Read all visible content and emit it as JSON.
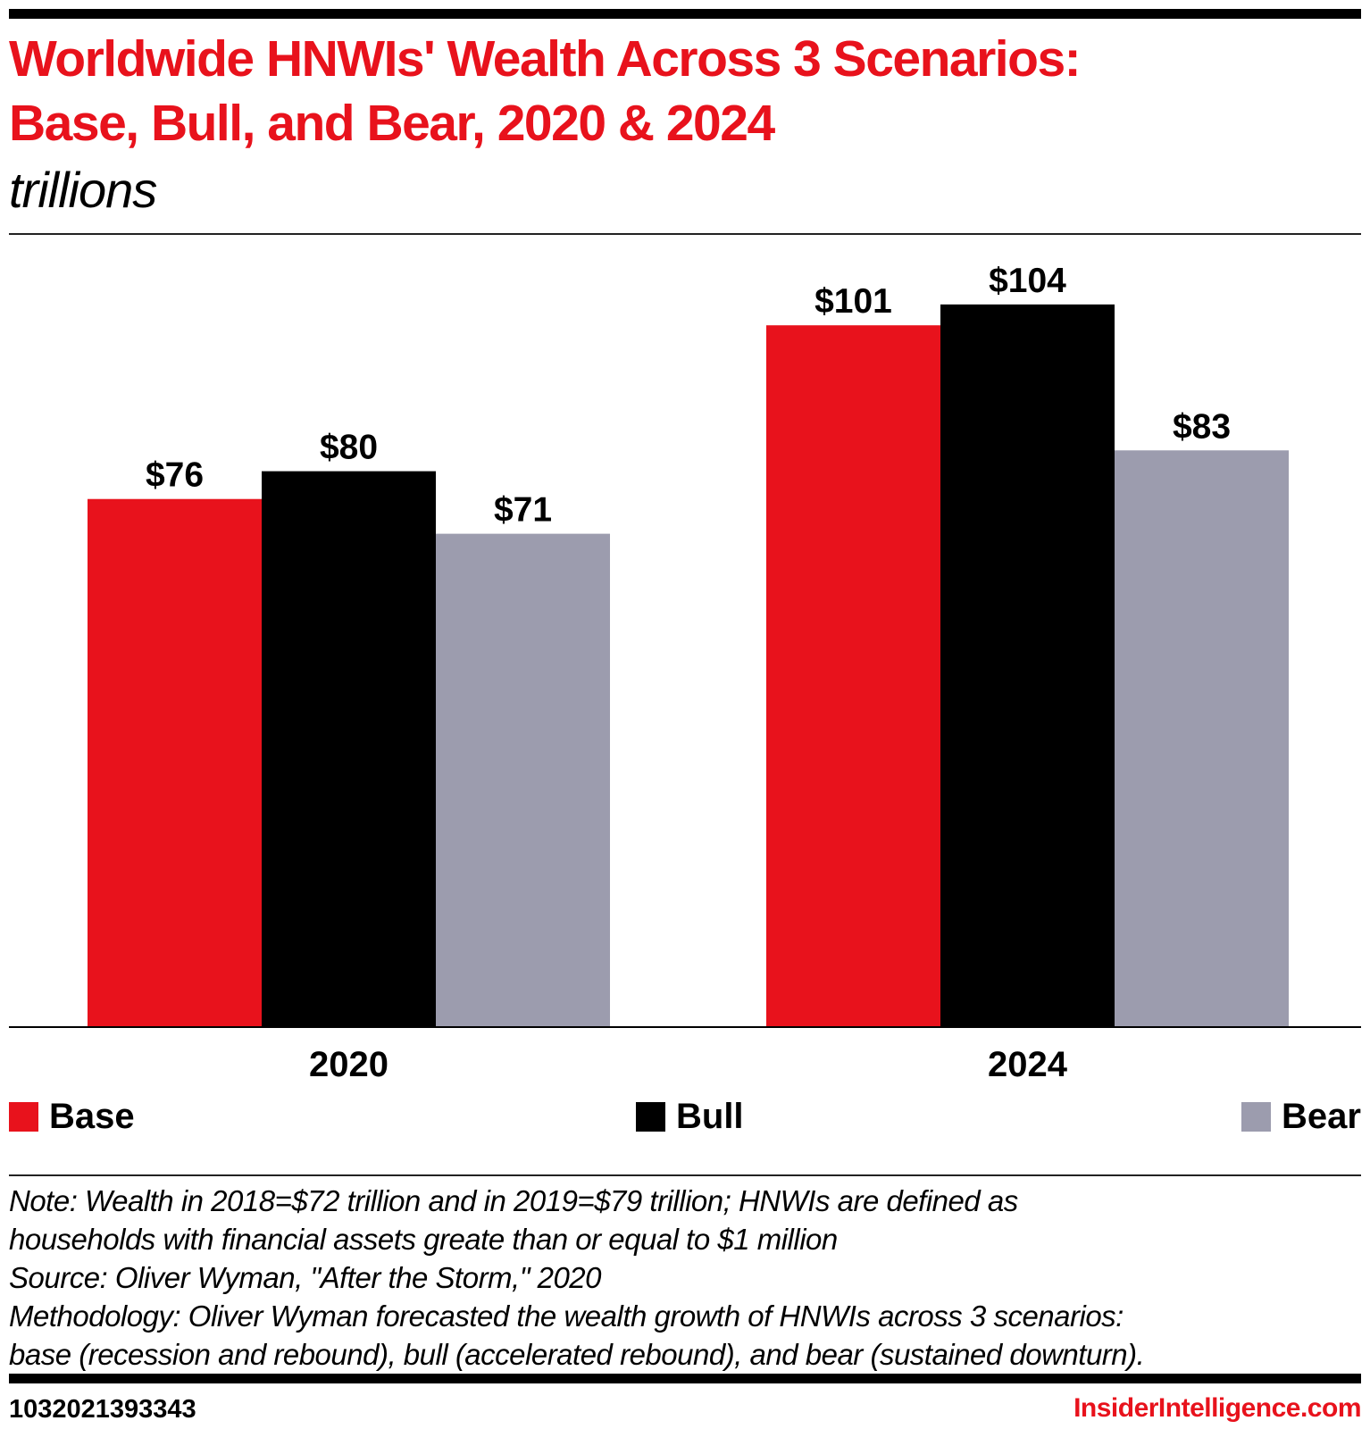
{
  "header": {
    "title_line1": "Worldwide HNWIs' Wealth Across 3 Scenarios:",
    "title_line2": "Base, Bull, and Bear, 2020 & 2024",
    "subtitle": "trillions"
  },
  "chart_data": {
    "type": "bar",
    "title": "Worldwide HNWIs' Wealth Across 3 Scenarios: Base, Bull, and Bear, 2020 & 2024",
    "subtitle": "trillions",
    "categories": [
      "2020",
      "2024"
    ],
    "series": [
      {
        "name": "Base",
        "color": "#e8121c",
        "values": [
          76,
          101
        ],
        "labels": [
          "$76",
          "$101"
        ]
      },
      {
        "name": "Bull",
        "color": "#000000",
        "values": [
          80,
          104
        ],
        "labels": [
          "$80",
          "$104"
        ]
      },
      {
        "name": "Bear",
        "color": "#9c9cae",
        "values": [
          71,
          83
        ],
        "labels": [
          "$71",
          "$83"
        ]
      }
    ],
    "ylim": [
      0,
      120
    ],
    "grid": false,
    "legend_position": "bottom"
  },
  "notes": [
    "Note: Wealth in 2018=$72 trillion and in 2019=$79 trillion; HNWIs are defined as",
    "households with financial assets greate than or equal to $1 million",
    "Source: Oliver Wyman, \"After the Storm,\" 2020",
    "Methodology: Oliver Wyman forecasted the wealth growth of HNWIs across 3 scenarios:",
    "base (recession and rebound), bull (accelerated rebound), and bear (sustained downturn)."
  ],
  "footer": {
    "chart_id": "1032021393343",
    "brand": "InsiderIntelligence.com"
  }
}
